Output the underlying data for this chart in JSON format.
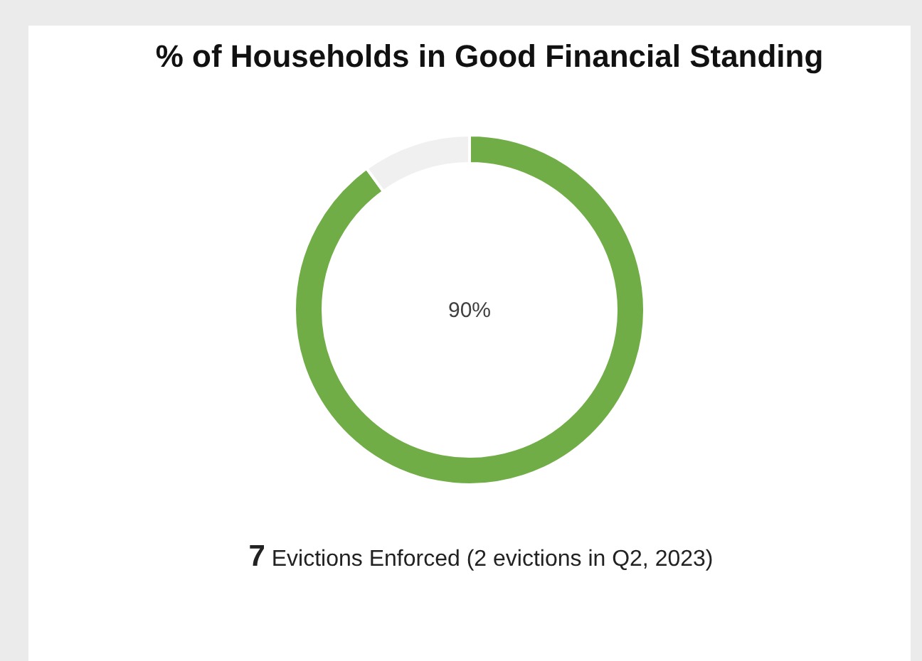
{
  "chart_data": {
    "type": "donut",
    "title": "% of Households in Good Financial Standing",
    "categories": [
      null,
      null
    ],
    "values": [
      90,
      10
    ],
    "colors": [
      "#70ad47",
      "#f0f0f0"
    ],
    "value_labels": [
      "90%",
      null
    ],
    "annotations": [
      "7 Evictions Enforced (2 evictions in Q2, 2023)"
    ]
  }
}
